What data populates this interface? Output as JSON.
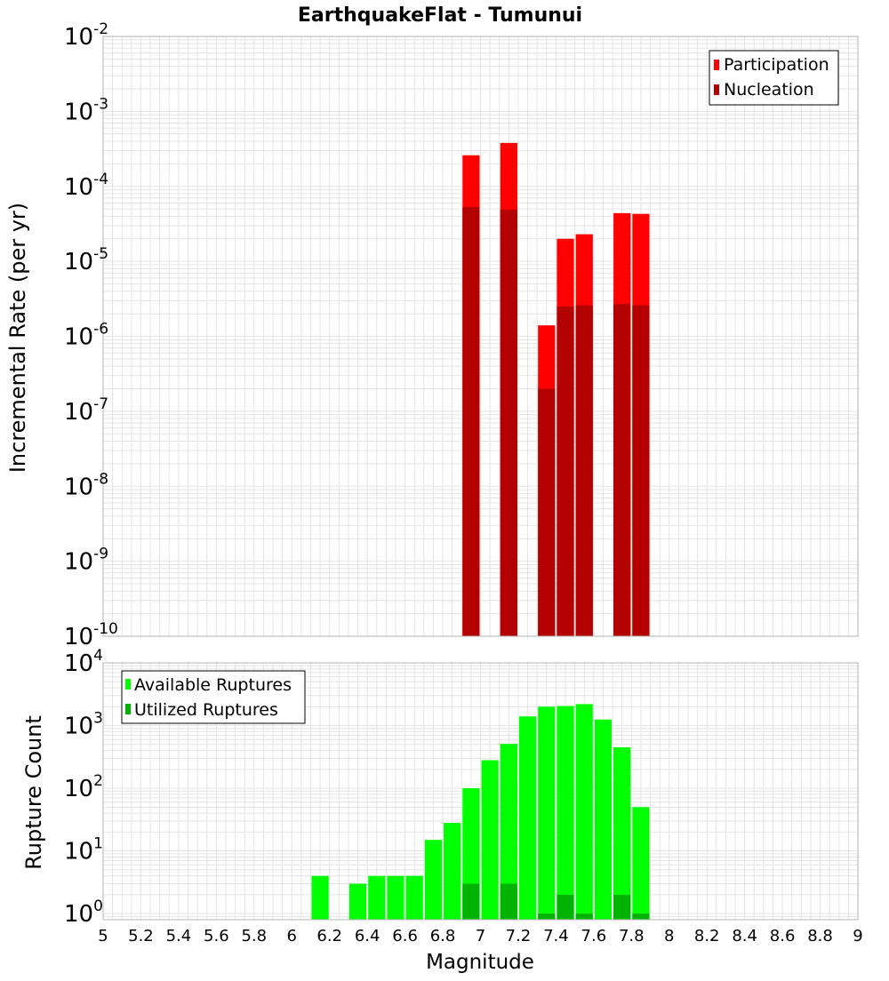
{
  "title": "EarthquakeFlat - Tumunui",
  "xlabel": "Magnitude",
  "x_ticks": [
    "5",
    "5.2",
    "5.4",
    "5.6",
    "5.8",
    "6",
    "6.2",
    "6.4",
    "6.6",
    "6.8",
    "7",
    "7.2",
    "7.4",
    "7.6",
    "7.8",
    "8",
    "8.2",
    "8.4",
    "8.6",
    "8.8",
    "9"
  ],
  "colors": {
    "participation": "#ff0000",
    "nucleation": "#b30000",
    "available": "#00ff00",
    "utilized": "#00b300",
    "grid": "#e4e4e4",
    "frame": "#b4b4b4"
  },
  "chart_data": [
    {
      "type": "bar",
      "ylabel": "Incremental Rate (per yr)",
      "y_scale": "log",
      "ylim": [
        1e-10,
        0.01
      ],
      "xlim": [
        5,
        9
      ],
      "bar_width": 0.1,
      "y_tick_exponents": [
        "-2",
        "-3",
        "-4",
        "-5",
        "-6",
        "-7",
        "-8",
        "-9",
        "-10"
      ],
      "legend_position": "top-right",
      "grid": true,
      "x": [
        6.95,
        7.15,
        7.35,
        7.45,
        7.55,
        7.75,
        7.85
      ],
      "series": [
        {
          "name": "Participation",
          "values": [
            0.00026,
            0.00038,
            1.4e-06,
            2e-05,
            2.3e-05,
            4.4e-05,
            4.3e-05
          ]
        },
        {
          "name": "Nucleation",
          "values": [
            5.3e-05,
            4.9e-05,
            2e-07,
            2.5e-06,
            2.6e-06,
            2.7e-06,
            2.6e-06
          ]
        }
      ]
    },
    {
      "type": "bar",
      "ylabel": "Rupture Count",
      "y_scale": "log",
      "ylim": [
        0.8,
        10000
      ],
      "xlim": [
        5,
        9
      ],
      "bar_width": 0.1,
      "y_tick_exponents": [
        "4",
        "3",
        "2",
        "1",
        "0"
      ],
      "legend_position": "top-left",
      "grid": true,
      "x": [
        6.15,
        6.35,
        6.45,
        6.55,
        6.65,
        6.75,
        6.85,
        6.95,
        7.05,
        7.15,
        7.25,
        7.35,
        7.45,
        7.55,
        7.65,
        7.75,
        7.85
      ],
      "series": [
        {
          "name": "Available Ruptures",
          "values": [
            4,
            3,
            4,
            4,
            4,
            15,
            28,
            100,
            280,
            510,
            1400,
            2000,
            2050,
            2200,
            1250,
            450,
            50
          ]
        },
        {
          "name": "Utilized Ruptures",
          "values": [
            0,
            0,
            0,
            0,
            0,
            0,
            0,
            3,
            0,
            3,
            0,
            1,
            2,
            1,
            0,
            2,
            1
          ]
        }
      ]
    }
  ]
}
